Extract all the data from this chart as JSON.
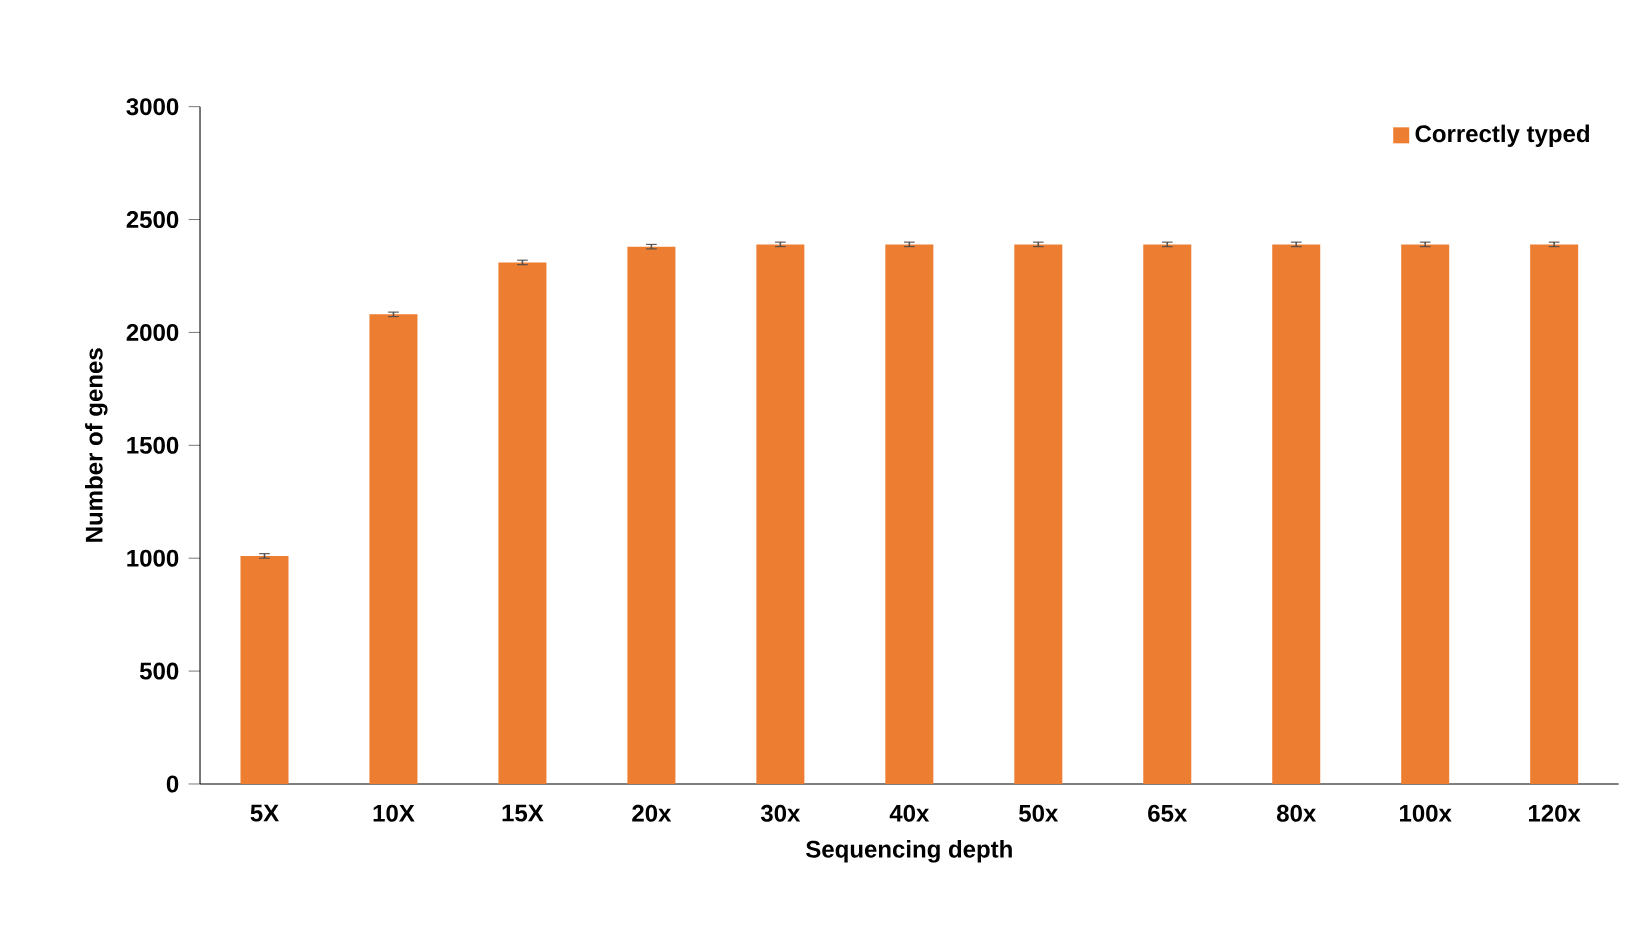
{
  "chart_data": {
    "type": "bar",
    "xlabel": "Sequencing depth",
    "ylabel": "Number of genes",
    "categories": [
      "5X",
      "10X",
      "15X",
      "20x",
      "30x",
      "40x",
      "50x",
      "65x",
      "80x",
      "100x",
      "120x"
    ],
    "series": [
      {
        "name": "Correctly typed",
        "color": "#ed7d31",
        "values": [
          1010,
          2080,
          2310,
          2380,
          2390,
          2390,
          2390,
          2390,
          2390,
          2390,
          2390
        ],
        "errors": [
          10,
          10,
          10,
          10,
          10,
          10,
          10,
          10,
          10,
          10,
          10
        ]
      }
    ],
    "ylim": [
      0,
      3000
    ],
    "yticks": [
      0,
      500,
      1000,
      1500,
      2000,
      2500,
      3000
    ],
    "grid": false,
    "legend": "top right"
  }
}
